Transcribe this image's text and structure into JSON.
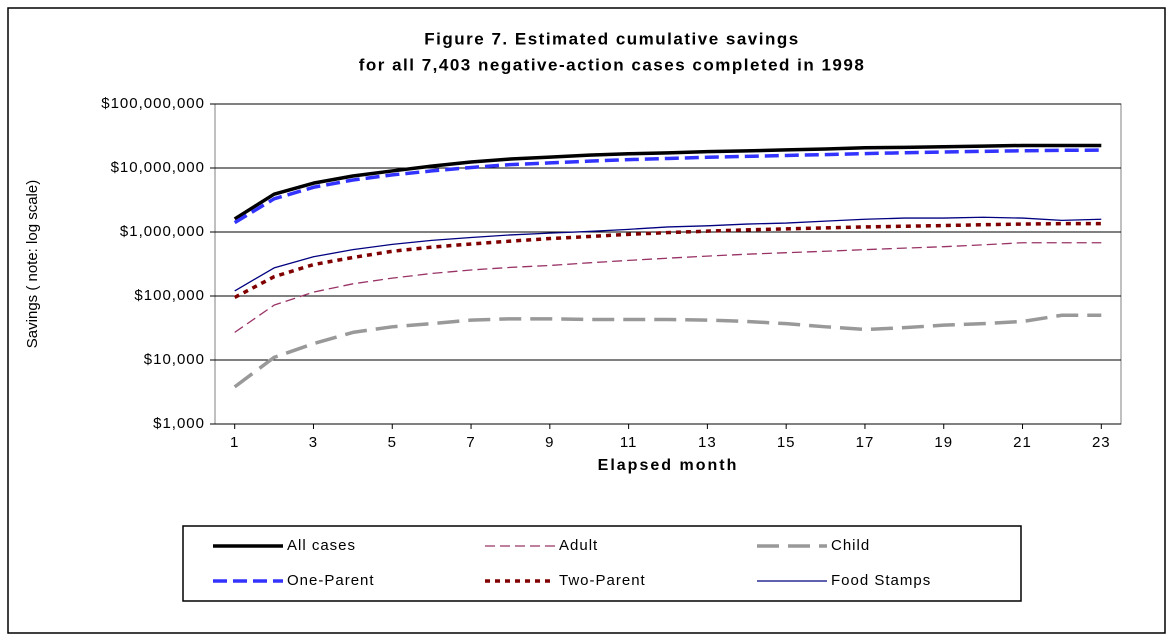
{
  "chart_data": {
    "type": "line",
    "title": [
      "Figure 7. Estimated cumulative savings",
      "for all 7,403 negative-action cases completed in 1998"
    ],
    "x_label": "Elapsed month",
    "y_label": "Savings ( note: log scale)",
    "x": [
      1,
      2,
      3,
      4,
      5,
      6,
      7,
      8,
      9,
      10,
      11,
      12,
      13,
      14,
      15,
      16,
      17,
      18,
      19,
      20,
      21,
      22,
      23
    ],
    "xlim": [
      0.5,
      23.5
    ],
    "xticks": [
      1,
      3,
      5,
      7,
      9,
      11,
      13,
      15,
      17,
      19,
      21,
      23
    ],
    "ylim": [
      1000,
      100000000
    ],
    "log_y": true,
    "yticks": [
      {
        "value": 1000,
        "label": "$1,000"
      },
      {
        "value": 10000,
        "label": "$10,000"
      },
      {
        "value": 100000,
        "label": "$100,000"
      },
      {
        "value": 1000000,
        "label": "$1,000,000"
      },
      {
        "value": 10000000,
        "label": "$10,000,000"
      },
      {
        "value": 100000000,
        "label": "$100,000,000"
      }
    ],
    "grid": true,
    "legend": "bottom",
    "series": [
      {
        "name": "All cases",
        "color": "#000000",
        "dash": "solid",
        "weight": "heavy",
        "values": [
          1600000,
          3900000,
          5800000,
          7500000,
          9000000,
          10700000,
          12400000,
          13800000,
          14800000,
          15900000,
          16700000,
          17200000,
          18000000,
          18500000,
          19200000,
          19800000,
          20700000,
          21000000,
          21500000,
          22000000,
          22500000,
          22500000,
          22500000
        ]
      },
      {
        "name": "Adult",
        "color": "#993366",
        "dash": "dash",
        "weight": "light",
        "values": [
          27000,
          72000,
          115000,
          155000,
          190000,
          225000,
          255000,
          280000,
          300000,
          330000,
          360000,
          390000,
          420000,
          450000,
          475000,
          500000,
          530000,
          560000,
          590000,
          630000,
          680000,
          680000,
          680000
        ]
      },
      {
        "name": "Child",
        "color": "#999999",
        "dash": "longdash",
        "weight": "heavy",
        "values": [
          3800,
          11000,
          18000,
          27000,
          33000,
          37000,
          42000,
          44000,
          44000,
          43000,
          43000,
          43000,
          42000,
          40000,
          37000,
          33000,
          30000,
          32000,
          35000,
          37000,
          40000,
          50000,
          50000
        ]
      },
      {
        "name": "One-Parent",
        "color": "#3333ff",
        "dash": "dash",
        "weight": "heavy",
        "values": [
          1400000,
          3300000,
          5000000,
          6500000,
          7800000,
          9000000,
          10200000,
          11300000,
          12000000,
          12800000,
          13500000,
          14100000,
          14700000,
          15200000,
          15700000,
          16200000,
          16800000,
          17300000,
          17800000,
          18200000,
          18600000,
          18900000,
          19000000
        ]
      },
      {
        "name": "Two-Parent",
        "color": "#800000",
        "dash": "dot",
        "weight": "heavy",
        "values": [
          95000,
          200000,
          310000,
          400000,
          500000,
          580000,
          650000,
          720000,
          790000,
          850000,
          920000,
          980000,
          1030000,
          1080000,
          1120000,
          1160000,
          1200000,
          1230000,
          1260000,
          1300000,
          1330000,
          1350000,
          1350000
        ]
      },
      {
        "name": "Food Stamps",
        "color": "#000080",
        "dash": "solid",
        "weight": "light",
        "values": [
          120000,
          275000,
          410000,
          530000,
          640000,
          740000,
          820000,
          900000,
          960000,
          1020000,
          1100000,
          1200000,
          1250000,
          1330000,
          1380000,
          1480000,
          1580000,
          1650000,
          1650000,
          1700000,
          1650000,
          1520000,
          1580000
        ]
      }
    ]
  }
}
